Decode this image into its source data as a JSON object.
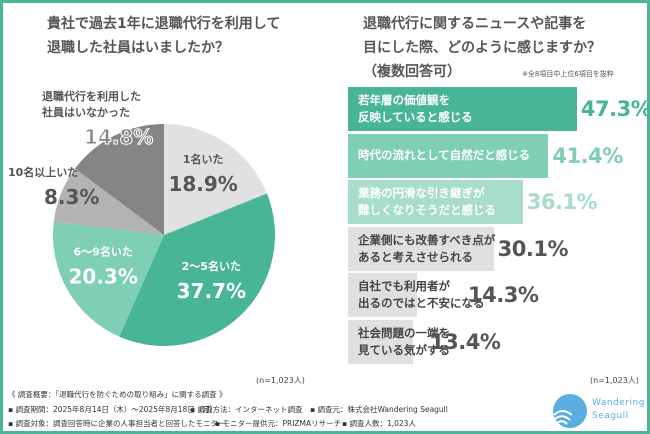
{
  "chart_data": [
    {
      "type": "pie",
      "title": "貴社で過去1年に退職代行を利用して\n退職した社員はいましたか？",
      "sample": "(n=1,023人)",
      "slices": [
        {
          "label": "1名いた",
          "value": 18.9,
          "display": "18.9%",
          "color": "#e1e1e1",
          "text_color": "#555555"
        },
        {
          "label": "2〜5名いた",
          "value": 37.7,
          "display": "37.7%",
          "color": "#49b597",
          "text_color": "#ffffff"
        },
        {
          "label": "6〜9名いた",
          "value": 20.3,
          "display": "20.3%",
          "color": "#7ecfb5",
          "text_color": "#ffffff"
        },
        {
          "label": "10名以上いた",
          "value": 8.3,
          "display": "8.3%",
          "color": "#b3b3b3",
          "text_color": "#555555"
        },
        {
          "label": "退職代行を利用した\n社員はいなかった",
          "value": 14.8,
          "display": "14.8%",
          "color": "#858585",
          "text_color": "#555555"
        }
      ]
    },
    {
      "type": "bar",
      "orientation": "horizontal",
      "title": "退職代行に関するニュースや記事を\n目にした際、どのように感じますか？\n（複数回答可）",
      "note": "※全8項目中上位6項目を抜粋",
      "sample": "(n=1,023人)",
      "categories": [
        "若年層の価値観を\n反映していると感じる",
        "時代の流れとして自然だと感じる",
        "業務の円滑な引き継ぎが\n難しくなりそうだと感じる",
        "企業側にも改善すべき点が\nあると考えさせられる",
        "自社でも利用者が\n出るのではと不安になる",
        "社会問題の一端を\n見ている気がする"
      ],
      "values": [
        47.3,
        41.4,
        36.1,
        30.1,
        14.3,
        13.4
      ],
      "displays": [
        "47.3%",
        "41.4%",
        "36.1%",
        "30.1%",
        "14.3%",
        "13.4%"
      ],
      "bar_colors": [
        "#49b597",
        "#7ecfb5",
        "#a8dccb",
        "#e0e0e0",
        "#e0e0e0",
        "#e0e0e0"
      ],
      "label_colors": [
        "#ffffff",
        "#ffffff",
        "#ffffff",
        "#444444",
        "#444444",
        "#444444"
      ],
      "value_colors": [
        "#49b597",
        "#7ecfb5",
        "#a8dccb",
        "#555555",
        "#555555",
        "#555555"
      ]
    }
  ],
  "footer": {
    "heading": "《 調査概要：「退職代行を防ぐための取り組み」に関する調査 》",
    "period": "▪ 調査期間：2025年8月14日（木）〜2025年8月18日（月）",
    "method": "▪ 調査方法：インターネット調査",
    "source": "▪ 調査元：株式会社Wandering Seagull",
    "target": "▪ 調査対象：調査回答時に企業の人事担当者と回答したモニター",
    "provider": "▪ モニター提供元：PRIZMAリサーチ",
    "count": "▪ 調査人数：1,023人"
  },
  "logo": {
    "line1": "Wandering",
    "line2": "Seagull",
    "color": "#5aaee0"
  },
  "accent": "#4bb596"
}
